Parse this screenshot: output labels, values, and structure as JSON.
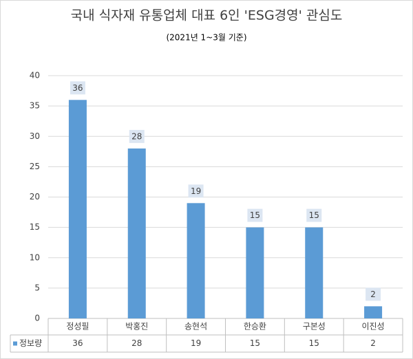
{
  "chart_data": {
    "type": "bar",
    "title": "국내 식자재 유통업체 대표 6인 'ESG경영' 관심도",
    "subtitle": "(2021년 1~3월 기준)",
    "categories": [
      "정성필",
      "박홍진",
      "송현석",
      "한승환",
      "구본성",
      "이진성"
    ],
    "series": [
      {
        "name": "정보량",
        "color": "#5b9bd5",
        "values": [
          36,
          28,
          19,
          15,
          15,
          2
        ]
      }
    ],
    "ylim": [
      0,
      40
    ],
    "yticks": [
      0,
      5,
      10,
      15,
      20,
      25,
      30,
      35,
      40
    ],
    "grid": true,
    "data_table": true
  }
}
